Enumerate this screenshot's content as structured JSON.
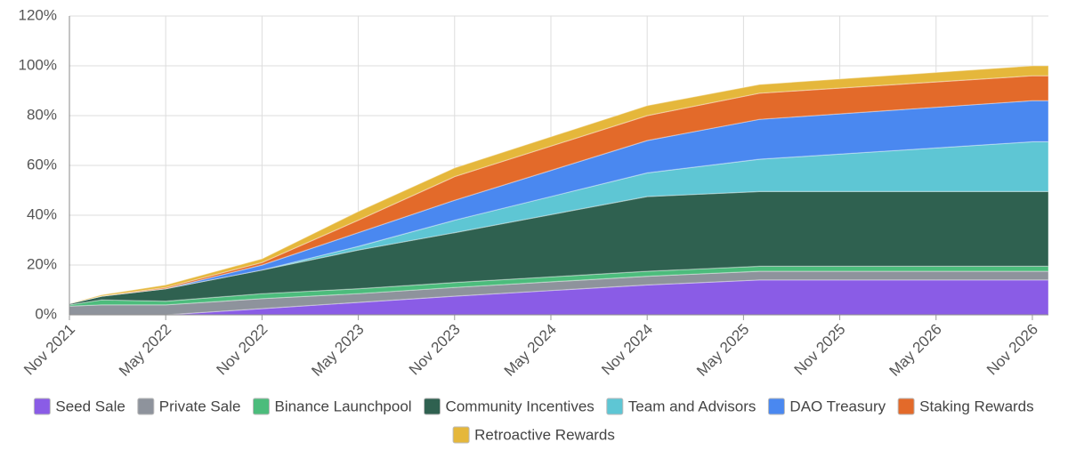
{
  "chart_data": {
    "type": "stacked-area",
    "x": [
      "Nov 2021",
      "Jan 2022",
      "May 2022",
      "Nov 2022",
      "May 2023",
      "Nov 2023",
      "Nov 2024",
      "Jun 2025",
      "Nov 2026",
      "Dec 2026"
    ],
    "xlim": [
      "Nov 2021",
      "Dec 2026"
    ],
    "xticks": [
      "Nov 2021",
      "May 2022",
      "Nov 2022",
      "May 2023",
      "Nov 2023",
      "May 2024",
      "Nov 2024",
      "May 2025",
      "Nov 2025",
      "May 2026",
      "Nov 2026"
    ],
    "ylim": [
      0,
      120
    ],
    "yticks": [
      {
        "value": 0,
        "label": "0%"
      },
      {
        "value": 20,
        "label": "20%"
      },
      {
        "value": 40,
        "label": "40%"
      },
      {
        "value": 60,
        "label": "60%"
      },
      {
        "value": 80,
        "label": "80%"
      },
      {
        "value": 100,
        "label": "100%"
      },
      {
        "value": 120,
        "label": "120%"
      }
    ],
    "grid": true,
    "legend": "bottom",
    "series": [
      {
        "name": "Seed Sale",
        "color": "#8a5ce6",
        "values": [
          0,
          0,
          0,
          2.5,
          5,
          7.5,
          12,
          14,
          14,
          14
        ]
      },
      {
        "name": "Private Sale",
        "color": "#8e939c",
        "values": [
          3.5,
          4,
          4,
          4,
          3.5,
          3.5,
          3.5,
          3.5,
          3.5,
          3.5
        ]
      },
      {
        "name": "Binance Launchpool",
        "color": "#4cbc7c",
        "values": [
          0.5,
          2,
          1.5,
          2,
          2,
          2,
          2,
          2,
          2,
          2
        ]
      },
      {
        "name": "Community Incentives",
        "color": "#2f6150",
        "values": [
          0.5,
          1.5,
          5,
          9.5,
          15.5,
          20,
          30,
          30,
          30,
          30
        ]
      },
      {
        "name": "Team and Advisors",
        "color": "#5ec6d4",
        "values": [
          0,
          0,
          0,
          0,
          1.5,
          5,
          9.5,
          13,
          20,
          20
        ]
      },
      {
        "name": "DAO Treasury",
        "color": "#4a88f0",
        "values": [
          0,
          0,
          0,
          2,
          5.5,
          8,
          13,
          16,
          16.5,
          16.5
        ]
      },
      {
        "name": "Staking Rewards",
        "color": "#e36a2a",
        "values": [
          0,
          0,
          0.5,
          1,
          5,
          9.5,
          10,
          10.5,
          10,
          10
        ]
      },
      {
        "name": "Retroactive Rewards",
        "color": "#e5b73b",
        "values": [
          0,
          0.5,
          1,
          1.5,
          3.5,
          3.5,
          4,
          3.5,
          4,
          4
        ]
      }
    ]
  }
}
